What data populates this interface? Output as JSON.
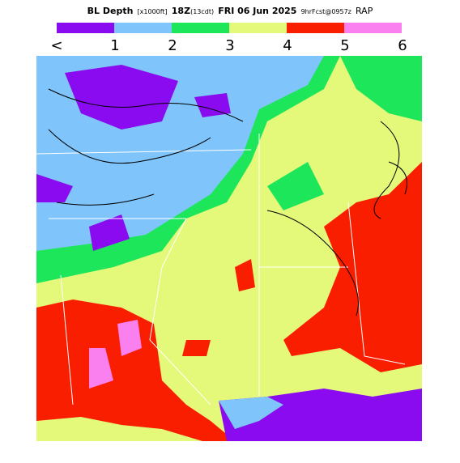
{
  "header": {
    "field": "BL Depth",
    "units": "[x1000ft]",
    "time": "18Z",
    "local": "(13cdt)",
    "date": "FRI 06 Jun 2025",
    "forecast": "9hrFcst@0957z",
    "model": "RAP"
  },
  "legend": {
    "labels": [
      "<",
      "1",
      "2",
      "3",
      "4",
      "5",
      "6"
    ],
    "colors": [
      "#8a0bf0",
      "#7fc4fa",
      "#1ee65a",
      "#e4f87a",
      "#fa1e00",
      "#fa80f0"
    ]
  }
}
